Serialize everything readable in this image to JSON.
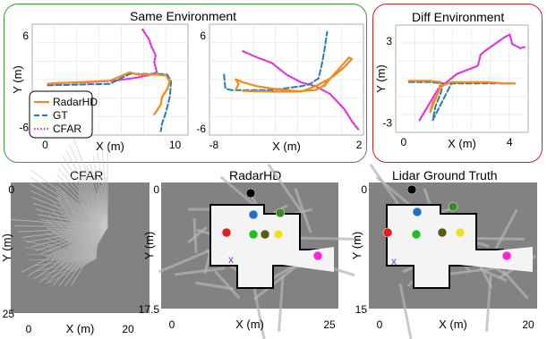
{
  "groups": {
    "same_title": "Same Environment",
    "diff_title": "Diff Environment"
  },
  "colors": {
    "radarhd": "#f28a1e",
    "gt": "#2c7bb6",
    "cfar": "#e02ee0",
    "green_frame": "#3a9a3a",
    "red_frame": "#d02020"
  },
  "chart_data": [
    {
      "type": "line",
      "panel": "same-1",
      "xlabel": "X (m)",
      "ylabel": "Y (m)",
      "xlim": [
        -1,
        11
      ],
      "ylim": [
        -7,
        7.5
      ],
      "xticks": [
        "0",
        "10"
      ],
      "xtick_values": [
        0,
        10
      ],
      "yticks": [
        "6",
        "-6"
      ],
      "ytick_values": [
        6,
        -6
      ],
      "grid": true,
      "legend": {
        "placement": "lower-left",
        "entries": [
          "RadarHD",
          "GT",
          "CFAR"
        ]
      },
      "series": [
        {
          "name": "RadarHD",
          "style": "solid",
          "x": [
            0.2,
            2.5,
            5.0,
            6.5,
            7.2,
            8.5,
            9.3,
            9.6,
            9.4,
            9.0,
            8.9,
            8.6,
            8.4
          ],
          "y": [
            -0.3,
            -0.1,
            0.1,
            1.2,
            0.9,
            0.9,
            0.8,
            0.0,
            -1.0,
            -2.0,
            -3.0,
            -3.8,
            -4.3
          ]
        },
        {
          "name": "GT",
          "style": "dashed",
          "x": [
            0.2,
            2.5,
            5.0,
            6.5,
            7.5,
            8.8,
            9.4,
            9.7,
            9.6,
            9.3,
            9.0,
            8.9
          ],
          "y": [
            -0.5,
            -0.4,
            -0.3,
            1.0,
            1.0,
            1.0,
            0.9,
            0.0,
            -2.0,
            -4.0,
            -5.5,
            -6.5
          ]
        },
        {
          "name": "CFAR",
          "style": "dotted",
          "x": [
            7.5,
            8.0,
            8.2,
            8.5,
            8.4,
            8.6,
            7.9,
            7.0,
            5.3,
            3.2,
            1.0,
            0.2
          ],
          "y": [
            6.8,
            5.5,
            4.5,
            3.5,
            2.5,
            1.2,
            0.8,
            0.5,
            0.1,
            -0.1,
            -0.2,
            -0.3
          ]
        }
      ]
    },
    {
      "type": "line",
      "panel": "same-2",
      "xlabel": "X (m)",
      "ylabel": "",
      "xlim": [
        -8.3,
        2.3
      ],
      "ylim": [
        -6.8,
        7.5
      ],
      "xticks": [
        "-8",
        "2"
      ],
      "xtick_values": [
        -8,
        2
      ],
      "yticks": [
        "6",
        "-6"
      ],
      "ytick_values": [
        6,
        -6
      ],
      "grid": true,
      "series": [
        {
          "name": "RadarHD",
          "style": "solid",
          "x": [
            -6.5,
            -6.3,
            -6.5,
            -6.0,
            -5.0,
            -4.0,
            -3.0,
            -2.0,
            -1.0,
            -0.5,
            0.0,
            0.5,
            1.0,
            1.5,
            1.3,
            0.5,
            0.0,
            -0.4,
            0.0,
            -0.5,
            -1.0,
            -2.5,
            -4.0,
            -6.0
          ],
          "y": [
            -1.0,
            -0.2,
            0.4,
            0.0,
            -0.5,
            -0.8,
            -1.0,
            -1.2,
            -0.5,
            0.0,
            0.5,
            1.2,
            2.0,
            3.0,
            3.2,
            1.5,
            0.5,
            -0.5,
            0.5,
            -0.5,
            -1.0,
            -1.2,
            -1.2,
            -1.1
          ]
        },
        {
          "name": "GT",
          "style": "dashed",
          "x": [
            -7.3,
            -7.2,
            -6.8,
            -6.0,
            -4.0,
            -2.0,
            -1.5,
            -1.2,
            -0.8,
            -0.6,
            -0.4,
            -0.2
          ],
          "y": [
            1.0,
            -0.8,
            -1.0,
            -1.0,
            -1.0,
            -0.5,
            -0.3,
            0.0,
            0.5,
            2.0,
            4.0,
            6.5
          ]
        },
        {
          "name": "CFAR",
          "style": "dotted",
          "x": [
            -6.0,
            -5.0,
            -4.0,
            -3.0,
            -2.5,
            -2.0,
            -1.0,
            0.0,
            0.5,
            1.0,
            1.5,
            2.0
          ],
          "y": [
            4.0,
            3.2,
            2.5,
            1.0,
            0.5,
            0.0,
            -0.5,
            -1.5,
            -2.5,
            -3.5,
            -5.0,
            -6.2
          ]
        }
      ]
    },
    {
      "type": "line",
      "panel": "diff",
      "xlabel": "X (m)",
      "ylabel": "Y (m)",
      "xlim": [
        -0.3,
        4.7
      ],
      "ylim": [
        -3.7,
        4.2
      ],
      "xticks": [
        "0",
        "4"
      ],
      "xtick_values": [
        0,
        4
      ],
      "yticks": [
        "3",
        "-3"
      ],
      "ytick_values": [
        3,
        -3
      ],
      "grid": true,
      "series": [
        {
          "name": "RadarHD",
          "style": "solid",
          "x": [
            0.2,
            1.0,
            1.4,
            1.3,
            1.1,
            1.0,
            1.4,
            1.8,
            2.5,
            3.2,
            3.8,
            4.2
          ],
          "y": [
            0.1,
            0.1,
            0.0,
            -0.8,
            -1.5,
            -2.2,
            -0.3,
            0.0,
            0.0,
            0.0,
            -0.1,
            -0.1
          ]
        },
        {
          "name": "GT",
          "style": "dashed",
          "x": [
            0.2,
            1.0,
            1.5,
            1.4,
            1.2,
            1.1,
            1.8,
            2.5,
            3.5,
            4.2
          ],
          "y": [
            0.0,
            0.0,
            -0.1,
            -0.8,
            -1.8,
            -2.8,
            -0.1,
            -0.1,
            -0.1,
            -0.1
          ]
        },
        {
          "name": "CFAR",
          "style": "dotted",
          "x": [
            0.6,
            1.3,
            2.0,
            2.8,
            2.9,
            3.0,
            3.8,
            4.0,
            4.1,
            4.4,
            4.6
          ],
          "y": [
            -2.8,
            -0.5,
            0.6,
            1.2,
            2.0,
            2.2,
            3.3,
            3.5,
            2.8,
            2.5,
            2.6
          ]
        }
      ]
    }
  ],
  "maps": [
    {
      "id": "cfar",
      "title": "CFAR",
      "xlabel": "X (m)",
      "ylabel": "Y (m)",
      "xticks": [
        "0",
        "20"
      ],
      "yticks": [
        "0",
        "25"
      ]
    },
    {
      "id": "radarhd",
      "title": "RadarHD",
      "xlabel": "X (m)",
      "ylabel": "Y (m)",
      "xticks": [
        "0",
        "25"
      ],
      "yticks": [
        "0",
        "17.5"
      ]
    },
    {
      "id": "lidar",
      "title": "Lidar Ground Truth",
      "xlabel": "X (m)",
      "ylabel": "Y (m)",
      "xticks": [
        "0",
        "20"
      ],
      "yticks": [
        "0",
        "15"
      ]
    }
  ],
  "markers": {
    "colors": [
      "#000000",
      "#1f6fd0",
      "#3a8a2a",
      "#e02020",
      "#20c020",
      "#5a5a10",
      "#f0e020",
      "#ff20e0",
      "#8a40c0"
    ],
    "x_symbol": "x"
  }
}
